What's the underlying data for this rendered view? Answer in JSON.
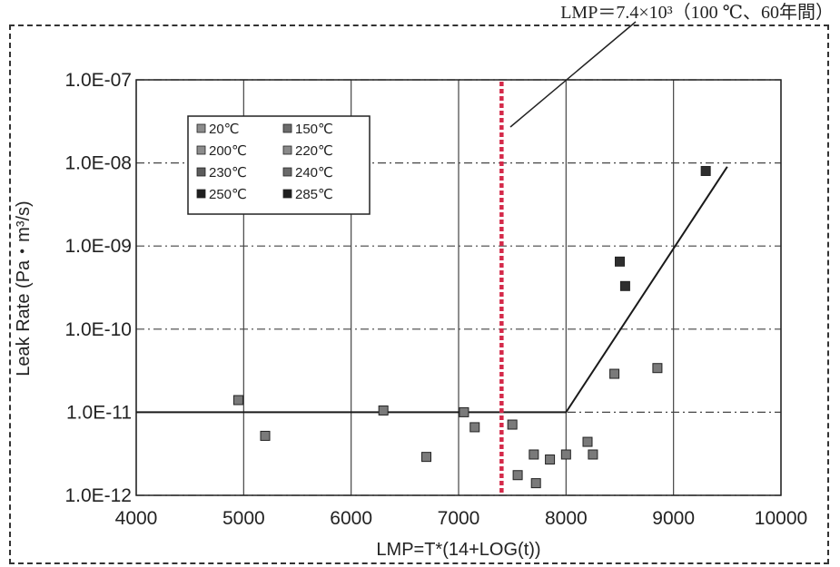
{
  "chart_data": {
    "type": "scatter",
    "xlabel": "LMP=T*(14+LOG(t))",
    "ylabel": "Leak Rate (Pa・m³/s)",
    "xlim": [
      4000,
      10000
    ],
    "ylim": [
      1e-12,
      1e-07
    ],
    "yscale": "log",
    "grid": true,
    "legend_position": "upper-left",
    "x_ticks": [
      4000,
      5000,
      6000,
      7000,
      8000,
      9000,
      10000
    ],
    "x_tick_labels": [
      "4000",
      "5000",
      "6000",
      "7000",
      "8000",
      "9000",
      "10000"
    ],
    "y_ticks": [
      1e-12,
      1e-11,
      1e-10,
      1e-09,
      1e-08,
      1e-07
    ],
    "y_tick_labels": [
      "1.0E-12",
      "1.0E-11",
      "1.0E-10",
      "1.0E-09",
      "1.0E-08",
      "1.0E-07"
    ],
    "legend": [
      "20℃",
      "150℃",
      "200℃",
      "220℃",
      "230℃",
      "240℃",
      "250℃",
      "285℃"
    ],
    "points": [
      {
        "x": 4950,
        "y": 1.4e-11
      },
      {
        "x": 5200,
        "y": 5.2e-12
      },
      {
        "x": 6300,
        "y": 1.05e-11
      },
      {
        "x": 6700,
        "y": 2.9e-12
      },
      {
        "x": 7050,
        "y": 1e-11
      },
      {
        "x": 7150,
        "y": 6.6e-12
      },
      {
        "x": 7500,
        "y": 7.1e-12
      },
      {
        "x": 7550,
        "y": 1.75e-12
      },
      {
        "x": 7700,
        "y": 3.1e-12
      },
      {
        "x": 7720,
        "y": 1.4e-12
      },
      {
        "x": 7850,
        "y": 2.7e-12
      },
      {
        "x": 8000,
        "y": 3.1e-12
      },
      {
        "x": 8200,
        "y": 4.4e-12
      },
      {
        "x": 8250,
        "y": 3.1e-12
      },
      {
        "x": 8450,
        "y": 2.9e-11
      },
      {
        "x": 8500,
        "y": 6.5e-10
      },
      {
        "x": 8550,
        "y": 3.3e-10
      },
      {
        "x": 8850,
        "y": 3.4e-11
      },
      {
        "x": 9300,
        "y": 8e-09
      }
    ],
    "fit_line": [
      {
        "x": 4000,
        "y": 1e-11
      },
      {
        "x": 8000,
        "y": 1e-11
      },
      {
        "x": 9500,
        "y": 9e-09
      }
    ],
    "reference_line": {
      "x": 7400,
      "color": "#d42a4a"
    },
    "annotation": "LMP＝7.4×10³（100 ℃、60年間）",
    "colors": {
      "marker_fill": "#7a7a7a",
      "marker_dark": "#2e2e2e",
      "line": "#1a1a1a",
      "grid": "#444444"
    }
  }
}
